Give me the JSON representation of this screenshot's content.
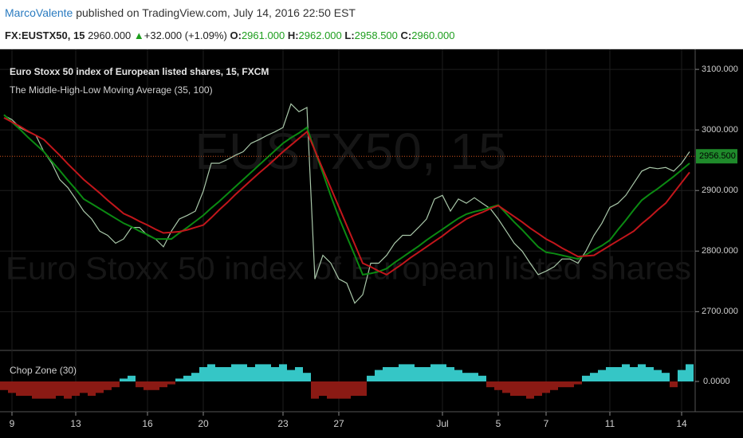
{
  "header": {
    "author": "MarcoValente",
    "published": "published on TradingView.com, July 14, 2016 22:50 EST",
    "symbol": "FX:EUSTX50, 15",
    "last": "2960.000",
    "arrow": "▲",
    "change": "+32.000 (+1.09%)",
    "open_label": "O:",
    "open": "2961.000",
    "high_label": "H:",
    "high": "2962.000",
    "low_label": "L:",
    "low": "2958.500",
    "close_label": "C:",
    "close": "2960.000"
  },
  "chart_data": [
    {
      "type": "line",
      "title": "Euro Stoxx 50 index of European listed shares, 15, FXCM",
      "subtitle": "The Middle-High-Low Moving Average (35, 100)",
      "watermark": "EUSTX50, 15",
      "watermark_subtitle": "Euro Stoxx 50 index of European listed shares",
      "categories": [
        null,
        "9",
        null,
        null,
        null,
        null,
        null,
        null,
        null,
        "13",
        null,
        null,
        null,
        null,
        null,
        null,
        null,
        null,
        "16",
        null,
        null,
        null,
        null,
        null,
        null,
        "20",
        null,
        null,
        null,
        null,
        null,
        null,
        null,
        null,
        null,
        "23",
        null,
        null,
        null,
        null,
        null,
        null,
        "27",
        null,
        null,
        null,
        null,
        null,
        null,
        null,
        null,
        null,
        null,
        null,
        null,
        "Jul",
        null,
        null,
        null,
        null,
        null,
        null,
        "5",
        null,
        null,
        null,
        null,
        null,
        "7",
        null,
        null,
        null,
        null,
        null,
        null,
        null,
        "11",
        null,
        null,
        null,
        null,
        null,
        null,
        null,
        null,
        "14",
        null
      ],
      "series": [
        {
          "color": "#a9c7a9",
          "values": [
            3024,
            3017,
            3004,
            2997,
            2991,
            2964,
            2945,
            2918,
            2905,
            2886,
            2866,
            2853,
            2833,
            2826,
            2813,
            2820,
            2839,
            2839,
            2826,
            2820,
            2807,
            2833,
            2853,
            2859,
            2866,
            2899,
            2945,
            2945,
            2951,
            2958,
            2964,
            2978,
            2984,
            2991,
            2997,
            3004,
            3043,
            3030,
            3037,
            2754,
            2793,
            2780,
            2754,
            2747,
            2714,
            2728,
            2780,
            2780,
            2793,
            2813,
            2826,
            2826,
            2839,
            2853,
            2886,
            2892,
            2866,
            2886,
            2879,
            2888,
            2879,
            2870,
            2853,
            2833,
            2813,
            2800,
            2780,
            2761,
            2767,
            2774,
            2787,
            2787,
            2780,
            2800,
            2826,
            2846,
            2872,
            2879,
            2892,
            2912,
            2932,
            2938,
            2936,
            2938,
            2932,
            2945,
            2964
          ]
        },
        {
          "color": "#0b8a12",
          "values": [
            3025,
            3013,
            3001,
            2988,
            2976,
            2964,
            2948,
            2933,
            2917,
            2902,
            2886,
            2878,
            2870,
            2862,
            2854,
            2846,
            2840,
            2833,
            2827,
            2820,
            2820,
            2820,
            2830,
            2839,
            2849,
            2859,
            2871,
            2882,
            2894,
            2906,
            2918,
            2930,
            2942,
            2954,
            2966,
            2978,
            2987,
            2995,
            3004,
            2966,
            2929,
            2891,
            2856,
            2824,
            2793,
            2761,
            2763,
            2766,
            2771,
            2781,
            2790,
            2799,
            2808,
            2818,
            2827,
            2836,
            2845,
            2854,
            2861,
            2865,
            2868,
            2872,
            2876,
            2862,
            2848,
            2835,
            2821,
            2807,
            2798,
            2796,
            2793,
            2790,
            2787,
            2794,
            2802,
            2809,
            2818,
            2835,
            2851,
            2868,
            2884,
            2894,
            2903,
            2913,
            2923,
            2934,
            2945
          ]
        },
        {
          "color": "#c2161b",
          "values": [
            3020,
            3013,
            3006,
            2998,
            2991,
            2984,
            2971,
            2958,
            2944,
            2931,
            2918,
            2907,
            2896,
            2884,
            2873,
            2862,
            2856,
            2849,
            2843,
            2836,
            2830,
            2831,
            2832,
            2835,
            2839,
            2843,
            2855,
            2868,
            2880,
            2893,
            2905,
            2917,
            2929,
            2940,
            2952,
            2964,
            2975,
            2986,
            2997,
            2966,
            2935,
            2904,
            2873,
            2842,
            2811,
            2780,
            2774,
            2767,
            2761,
            2770,
            2779,
            2789,
            2798,
            2807,
            2816,
            2825,
            2835,
            2844,
            2853,
            2859,
            2864,
            2870,
            2875,
            2866,
            2857,
            2848,
            2838,
            2829,
            2820,
            2813,
            2805,
            2798,
            2791,
            2792,
            2793,
            2801,
            2809,
            2817,
            2825,
            2833,
            2845,
            2856,
            2868,
            2879,
            2896,
            2913,
            2930
          ]
        }
      ],
      "ylim": [
        2636,
        3133
      ],
      "yticks": [
        {
          "value": 2700,
          "label": "2700.000"
        },
        {
          "value": 2800,
          "label": "2800.000"
        },
        {
          "value": 2900,
          "label": "2900.000"
        },
        {
          "value": 3000,
          "label": "3000.000"
        },
        {
          "value": 3100,
          "label": "3100.000"
        }
      ],
      "last_price": {
        "value": 2956.5,
        "label": "2956.500"
      },
      "last_price_color": "#d4541d",
      "label_color": "#1f8a2b",
      "grid": true
    },
    {
      "type": "bar",
      "title": "Chop Zone (30)",
      "values": [
        -0.3,
        -0.4,
        -0.5,
        -0.5,
        -0.6,
        -0.6,
        -0.6,
        -0.5,
        -0.6,
        -0.5,
        -0.4,
        -0.5,
        -0.4,
        -0.3,
        -0.2,
        0.1,
        0.2,
        -0.2,
        -0.3,
        -0.3,
        -0.2,
        -0.1,
        0.1,
        0.2,
        0.3,
        0.5,
        0.6,
        0.5,
        0.5,
        0.6,
        0.6,
        0.5,
        0.6,
        0.6,
        0.5,
        0.6,
        0.4,
        0.5,
        0.3,
        -0.6,
        -0.5,
        -0.6,
        -0.6,
        -0.6,
        -0.5,
        -0.5,
        0.2,
        0.4,
        0.5,
        0.5,
        0.6,
        0.6,
        0.5,
        0.5,
        0.6,
        0.6,
        0.5,
        0.4,
        0.3,
        0.3,
        0.2,
        -0.2,
        -0.3,
        -0.4,
        -0.5,
        -0.5,
        -0.6,
        -0.5,
        -0.4,
        -0.3,
        -0.2,
        -0.2,
        -0.1,
        0.2,
        0.3,
        0.4,
        0.5,
        0.5,
        0.6,
        0.5,
        0.6,
        0.5,
        0.4,
        0.3,
        -0.2,
        0.4,
        0.6
      ],
      "ylim": [
        -1,
        1
      ],
      "yticks": [
        {
          "value": 0,
          "label": "0.0000"
        }
      ],
      "positive_color": "#35c6c6",
      "negative_color": "#8b1a14"
    }
  ]
}
